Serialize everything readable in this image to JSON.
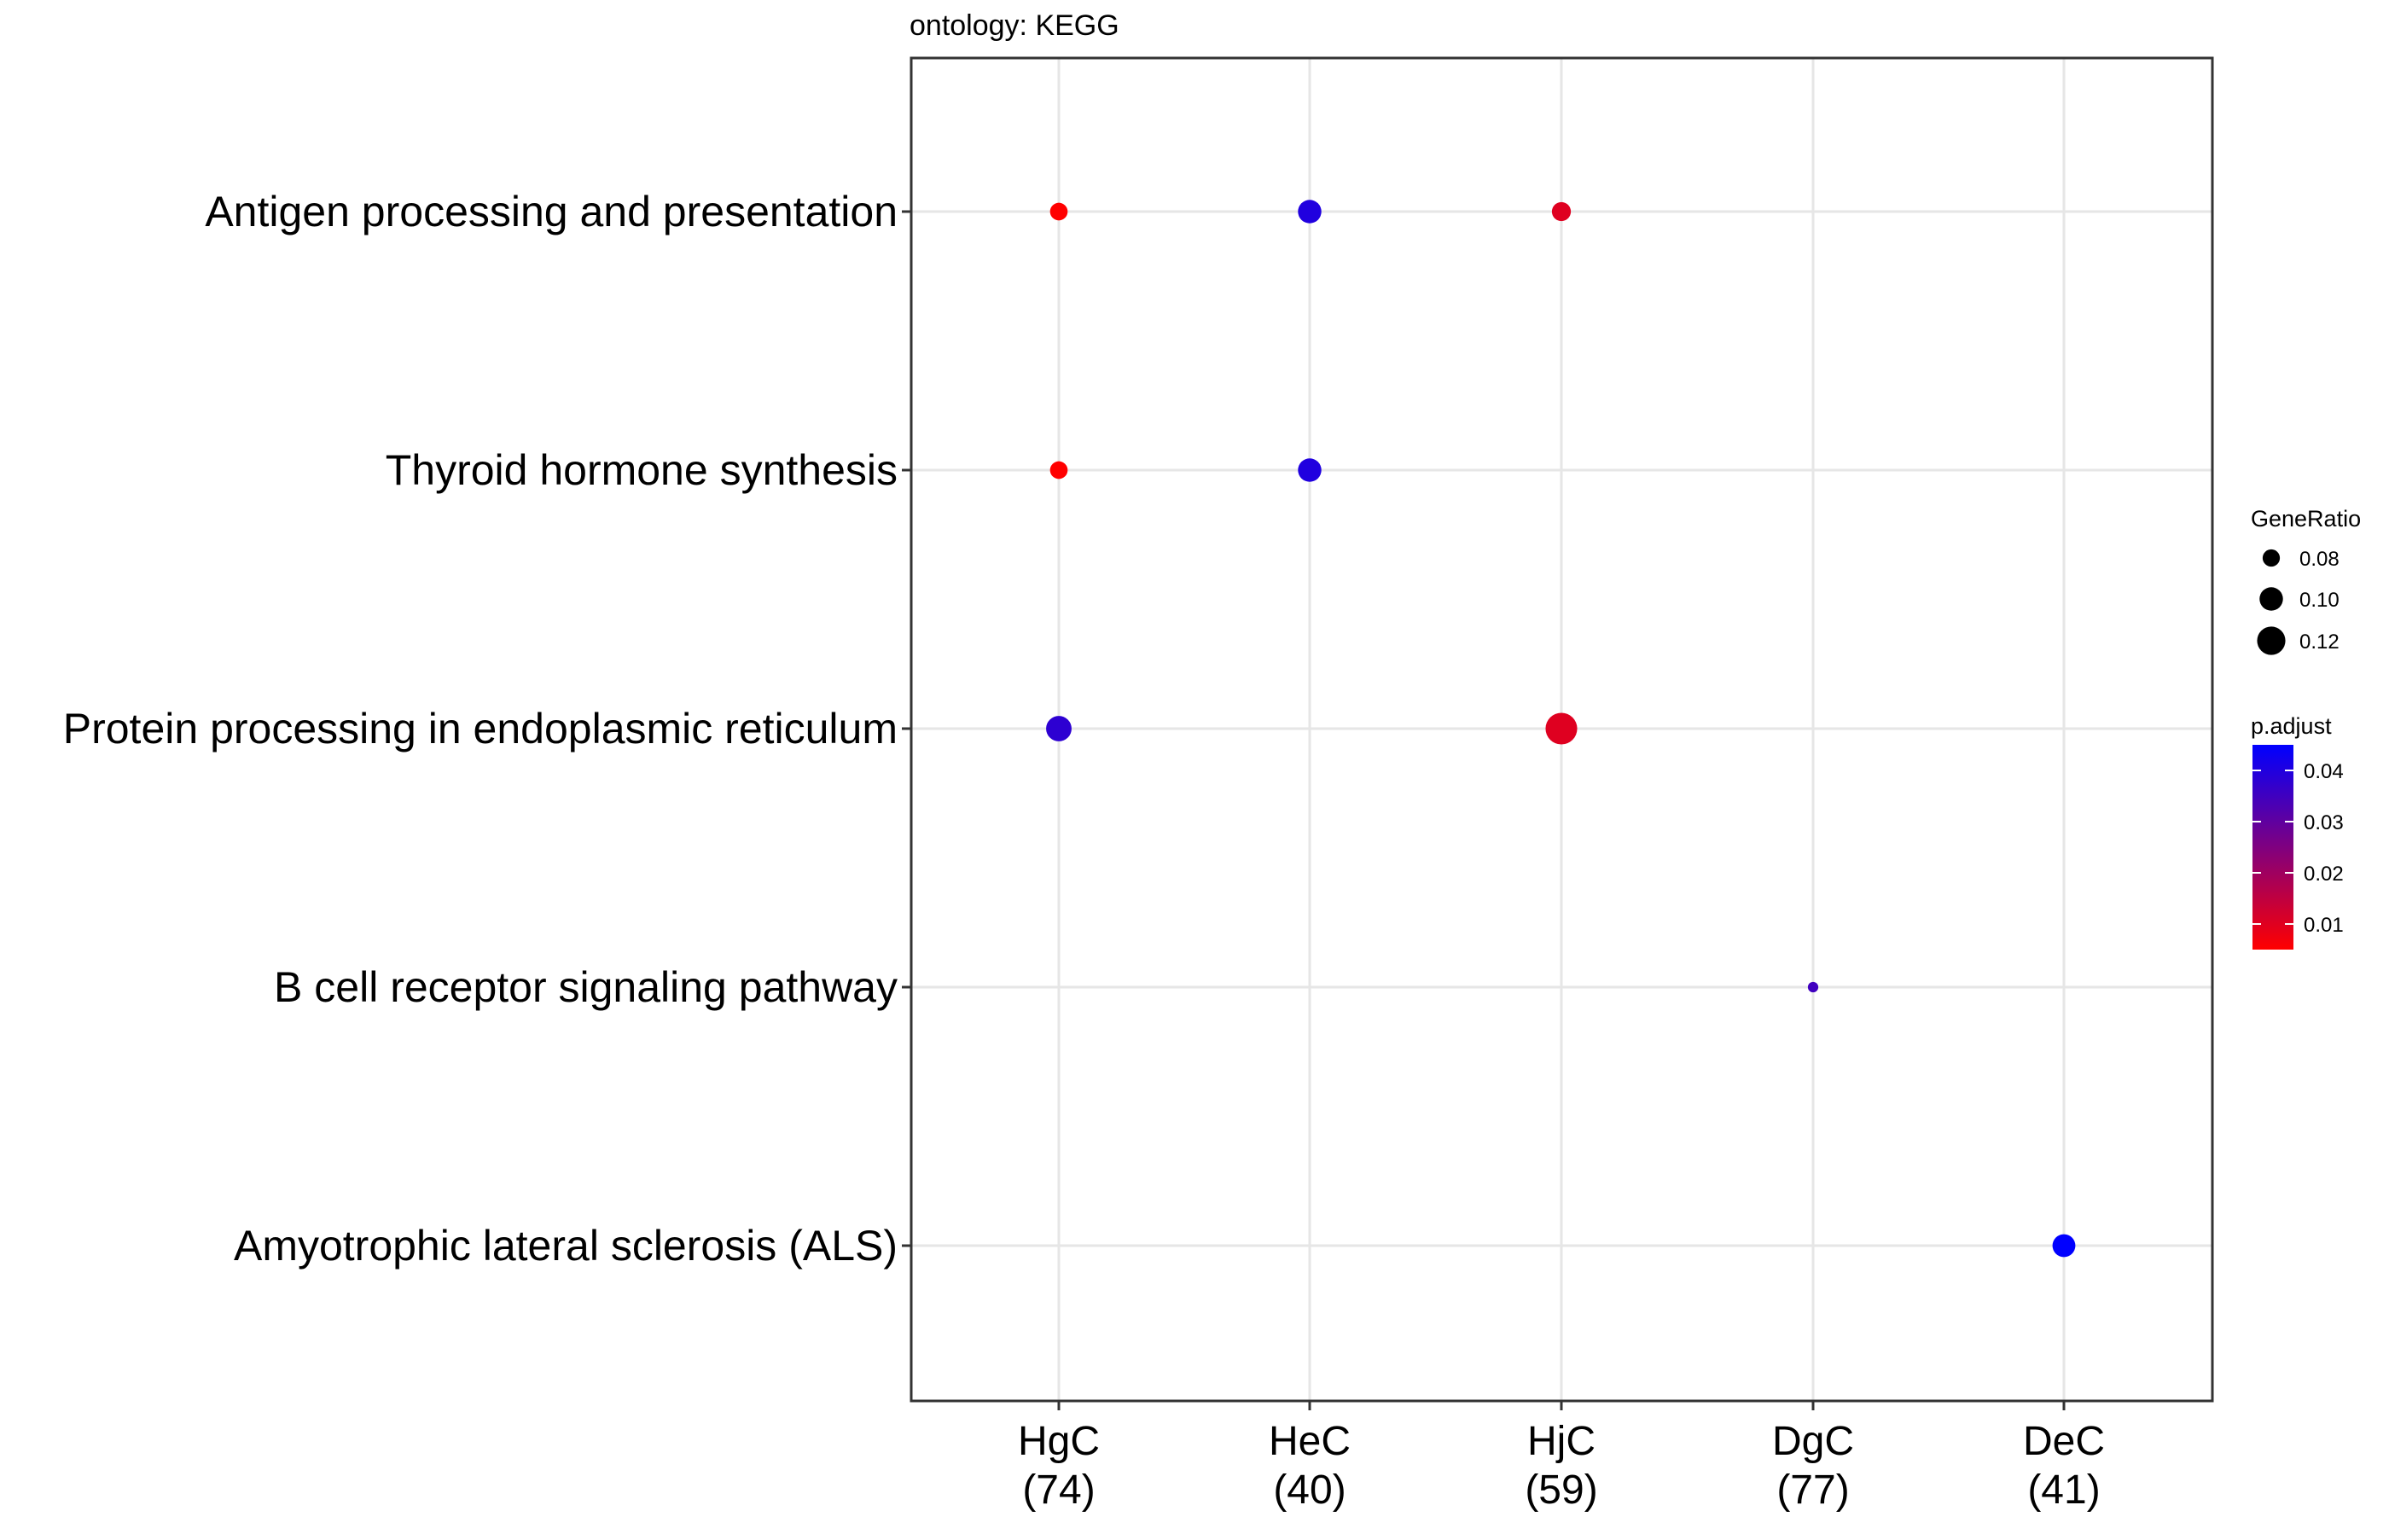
{
  "chart_data": {
    "type": "scatter",
    "title": "ontology: KEGG",
    "xlabel": "",
    "ylabel": "",
    "categories": [
      {
        "name": "HgC",
        "count": "(74)"
      },
      {
        "name": "HeC",
        "count": "(40)"
      },
      {
        "name": "HjC",
        "count": "(59)"
      },
      {
        "name": "DgC",
        "count": "(77)"
      },
      {
        "name": "DeC",
        "count": "(41)"
      }
    ],
    "terms": [
      "Antigen processing and presentation",
      "Thyroid hormone synthesis",
      "Protein processing in endoplasmic reticulum",
      "B cell receptor signaling pathway",
      "Amyotrophic lateral sclerosis (ALS)"
    ],
    "points": [
      {
        "x": "HgC",
        "y": "Antigen processing and presentation",
        "gene_ratio": 0.081,
        "p_adjust": 0.005
      },
      {
        "x": "HeC",
        "y": "Antigen processing and presentation",
        "gene_ratio": 0.1,
        "p_adjust": 0.04
      },
      {
        "x": "HjC",
        "y": "Antigen processing and presentation",
        "gene_ratio": 0.085,
        "p_adjust": 0.01
      },
      {
        "x": "HgC",
        "y": "Thyroid hormone synthesis",
        "gene_ratio": 0.081,
        "p_adjust": 0.005
      },
      {
        "x": "HeC",
        "y": "Thyroid hormone synthesis",
        "gene_ratio": 0.1,
        "p_adjust": 0.04
      },
      {
        "x": "HgC",
        "y": "Protein processing in endoplasmic reticulum",
        "gene_ratio": 0.108,
        "p_adjust": 0.038
      },
      {
        "x": "HjC",
        "y": "Protein processing in endoplasmic reticulum",
        "gene_ratio": 0.136,
        "p_adjust": 0.01
      },
      {
        "x": "DgC",
        "y": "B cell receptor signaling pathway",
        "gene_ratio": 0.065,
        "p_adjust": 0.035
      },
      {
        "x": "DeC",
        "y": "Amyotrophic lateral sclerosis (ALS)",
        "gene_ratio": 0.098,
        "p_adjust": 0.045
      }
    ],
    "size_legend": {
      "title": "GeneRatio",
      "breaks": [
        {
          "label": "0.08",
          "value": 0.08
        },
        {
          "label": "0.10",
          "value": 0.1
        },
        {
          "label": "0.12",
          "value": 0.12
        }
      ]
    },
    "color_legend": {
      "title": "p.adjust",
      "low_color": "#ff0000",
      "high_color": "#0000ff",
      "range": [
        0.005,
        0.045
      ],
      "breaks": [
        {
          "label": "0.01",
          "value": 0.01
        },
        {
          "label": "0.02",
          "value": 0.02
        },
        {
          "label": "0.03",
          "value": 0.03
        },
        {
          "label": "0.04",
          "value": 0.04
        }
      ]
    },
    "grid": true,
    "legend_position": "right"
  }
}
